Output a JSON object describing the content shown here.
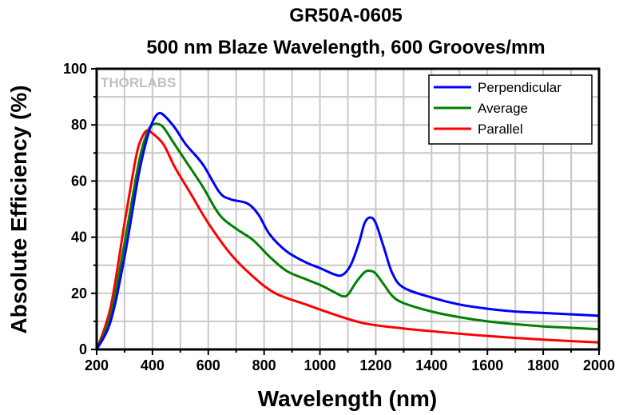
{
  "chart_data": {
    "type": "line",
    "title": "GR50A-0605",
    "subtitle": "500 nm Blaze Wavelength, 600 Grooves/mm",
    "xlabel": "Wavelength (nm)",
    "ylabel": "Absolute Efficiency (%)",
    "xlim": [
      200,
      2000
    ],
    "ylim": [
      0,
      100
    ],
    "xticks": [
      200,
      400,
      600,
      800,
      1000,
      1200,
      1400,
      1600,
      1800,
      2000
    ],
    "yticks": [
      0,
      20,
      40,
      60,
      80,
      100
    ],
    "grid": true,
    "legend_position": "top-right",
    "watermark": "THORLABS",
    "series": [
      {
        "name": "Perpendicular",
        "color": "#0000ff",
        "points": [
          [
            200,
            0
          ],
          [
            250,
            10
          ],
          [
            300,
            33
          ],
          [
            350,
            62
          ],
          [
            380,
            75
          ],
          [
            400,
            81
          ],
          [
            420,
            84
          ],
          [
            440,
            83.5
          ],
          [
            480,
            79
          ],
          [
            520,
            73
          ],
          [
            580,
            66
          ],
          [
            640,
            56
          ],
          [
            680,
            53.5
          ],
          [
            740,
            52
          ],
          [
            780,
            48
          ],
          [
            820,
            41
          ],
          [
            880,
            35
          ],
          [
            950,
            31
          ],
          [
            1000,
            29
          ],
          [
            1050,
            26.8
          ],
          [
            1080,
            26.5
          ],
          [
            1110,
            30
          ],
          [
            1140,
            38
          ],
          [
            1160,
            45
          ],
          [
            1180,
            47
          ],
          [
            1200,
            45
          ],
          [
            1230,
            36
          ],
          [
            1260,
            27
          ],
          [
            1300,
            22
          ],
          [
            1400,
            18.5
          ],
          [
            1500,
            16
          ],
          [
            1600,
            14.5
          ],
          [
            1700,
            13.5
          ],
          [
            1800,
            13
          ],
          [
            1900,
            12.5
          ],
          [
            2000,
            12
          ]
        ]
      },
      {
        "name": "Average",
        "color": "#008000",
        "points": [
          [
            200,
            0
          ],
          [
            250,
            12
          ],
          [
            300,
            38
          ],
          [
            350,
            66
          ],
          [
            380,
            77
          ],
          [
            400,
            80
          ],
          [
            420,
            80.3
          ],
          [
            440,
            79
          ],
          [
            480,
            73
          ],
          [
            520,
            67
          ],
          [
            580,
            58
          ],
          [
            640,
            48
          ],
          [
            700,
            43
          ],
          [
            760,
            39
          ],
          [
            820,
            33
          ],
          [
            880,
            28
          ],
          [
            950,
            25
          ],
          [
            1000,
            23
          ],
          [
            1050,
            20.5
          ],
          [
            1080,
            19
          ],
          [
            1100,
            19.5
          ],
          [
            1130,
            24
          ],
          [
            1160,
            27.5
          ],
          [
            1180,
            28
          ],
          [
            1200,
            27
          ],
          [
            1230,
            23
          ],
          [
            1260,
            19
          ],
          [
            1300,
            16.5
          ],
          [
            1400,
            13.5
          ],
          [
            1500,
            11.5
          ],
          [
            1600,
            10
          ],
          [
            1700,
            9
          ],
          [
            1800,
            8.2
          ],
          [
            1900,
            7.7
          ],
          [
            2000,
            7.2
          ]
        ]
      },
      {
        "name": "Parallel",
        "color": "#ff0000",
        "points": [
          [
            200,
            0
          ],
          [
            250,
            15
          ],
          [
            300,
            45
          ],
          [
            340,
            68
          ],
          [
            360,
            75
          ],
          [
            380,
            78
          ],
          [
            400,
            77
          ],
          [
            440,
            73
          ],
          [
            480,
            65
          ],
          [
            540,
            55
          ],
          [
            600,
            45
          ],
          [
            680,
            34
          ],
          [
            760,
            26
          ],
          [
            840,
            20
          ],
          [
            950,
            16
          ],
          [
            1050,
            12.5
          ],
          [
            1150,
            9.5
          ],
          [
            1250,
            8
          ],
          [
            1400,
            6.5
          ],
          [
            1600,
            4.8
          ],
          [
            1800,
            3.5
          ],
          [
            2000,
            2.5
          ]
        ]
      }
    ]
  }
}
